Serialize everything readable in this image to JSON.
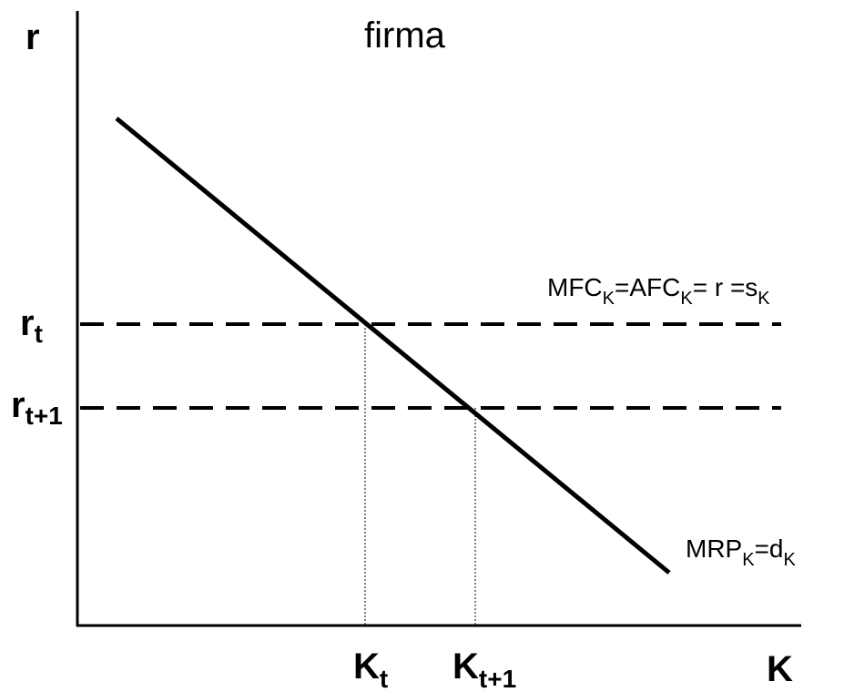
{
  "title": "firma",
  "axes": {
    "y_label": "r",
    "x_label": "K"
  },
  "levels": {
    "r_t": {
      "base": "r",
      "sub": "t"
    },
    "r_t1": {
      "base": "r",
      "sub": "t+1"
    },
    "K_t": {
      "base": "K",
      "sub": "t"
    },
    "K_t1": {
      "base": "K",
      "sub": "t+1"
    }
  },
  "supply_label": {
    "p1": "MFC",
    "s1": "K",
    "p2": "=AFC",
    "s2": "K",
    "p3": "= r =s",
    "s3": "K"
  },
  "demand_label": {
    "p1": "MRP",
    "s1": "K",
    "p2": "=d",
    "s2": "K"
  },
  "colors": {
    "line": "#000000",
    "background": "#ffffff"
  }
}
